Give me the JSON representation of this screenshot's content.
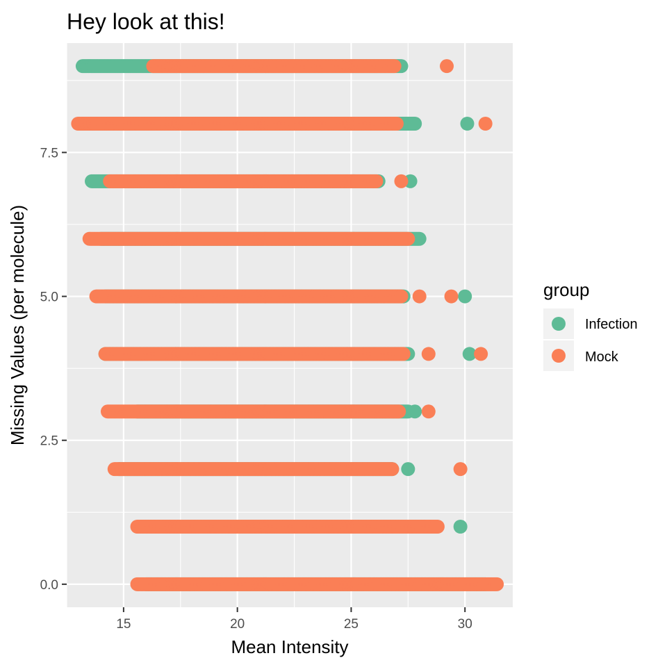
{
  "chart_data": {
    "type": "scatter",
    "title": "Hey look at this!",
    "xlabel": "Mean Intensity",
    "ylabel": "Missing Values (per molecule)",
    "xlim": [
      12.5,
      32.1
    ],
    "ylim": [
      -0.4,
      9.4
    ],
    "x_ticks": [
      15,
      20,
      25,
      30
    ],
    "x_tick_labels": [
      "15",
      "20",
      "25",
      "30"
    ],
    "y_ticks": [
      0,
      2.5,
      5,
      7.5
    ],
    "y_tick_labels": [
      "0.0",
      "2.5",
      "5.0",
      "7.5"
    ],
    "grid": true,
    "legend": {
      "title": "group",
      "position": "right",
      "entries": [
        {
          "label": "Infection",
          "color": "#5ebb96"
        },
        {
          "label": "Mock",
          "color": "#fa7f56"
        }
      ]
    },
    "series": [
      {
        "name": "Infection",
        "color": "#5ebb96",
        "rows": [
          {
            "y": 9,
            "x_min": 13.2,
            "x_max": 27.2,
            "outliers": []
          },
          {
            "y": 8,
            "x_min": 13.6,
            "x_max": 27.8,
            "outliers": [
              30.1
            ]
          },
          {
            "y": 7,
            "x_min": 13.6,
            "x_max": 26.2,
            "outliers": [
              27.6
            ]
          },
          {
            "y": 6,
            "x_min": 14.0,
            "x_max": 28.0,
            "outliers": []
          },
          {
            "y": 5,
            "x_min": 14.2,
            "x_max": 27.3,
            "outliers": [
              30.0
            ]
          },
          {
            "y": 4,
            "x_min": 14.2,
            "x_max": 27.5,
            "outliers": [
              30.2
            ]
          },
          {
            "y": 3,
            "x_min": 15.6,
            "x_max": 27.5,
            "outliers": [
              27.8
            ]
          },
          {
            "y": 2,
            "x_min": 14.8,
            "x_max": 26.8,
            "outliers": [
              27.5
            ]
          },
          {
            "y": 1,
            "x_min": 15.8,
            "x_max": 28.2,
            "outliers": [
              29.8
            ]
          },
          {
            "y": 0,
            "x_min": 16.0,
            "x_max": 30.9,
            "outliers": []
          }
        ]
      },
      {
        "name": "Mock",
        "color": "#fa7f56",
        "rows": [
          {
            "y": 9,
            "x_min": 16.3,
            "x_max": 26.9,
            "outliers": [
              29.2
            ]
          },
          {
            "y": 8,
            "x_min": 13.0,
            "x_max": 27.0,
            "outliers": [
              30.9
            ]
          },
          {
            "y": 7,
            "x_min": 14.4,
            "x_max": 26.1,
            "outliers": [
              27.2
            ]
          },
          {
            "y": 6,
            "x_min": 13.5,
            "x_max": 27.5,
            "outliers": []
          },
          {
            "y": 5,
            "x_min": 13.8,
            "x_max": 27.2,
            "outliers": [
              28.0,
              29.4
            ]
          },
          {
            "y": 4,
            "x_min": 14.2,
            "x_max": 27.3,
            "outliers": [
              28.4,
              30.7
            ]
          },
          {
            "y": 3,
            "x_min": 14.3,
            "x_max": 27.1,
            "outliers": [
              28.4
            ]
          },
          {
            "y": 2,
            "x_min": 14.6,
            "x_max": 26.8,
            "outliers": [
              29.8
            ]
          },
          {
            "y": 1,
            "x_min": 15.6,
            "x_max": 28.8,
            "outliers": []
          },
          {
            "y": 0,
            "x_min": 15.6,
            "x_max": 31.4,
            "outliers": []
          }
        ]
      }
    ]
  }
}
